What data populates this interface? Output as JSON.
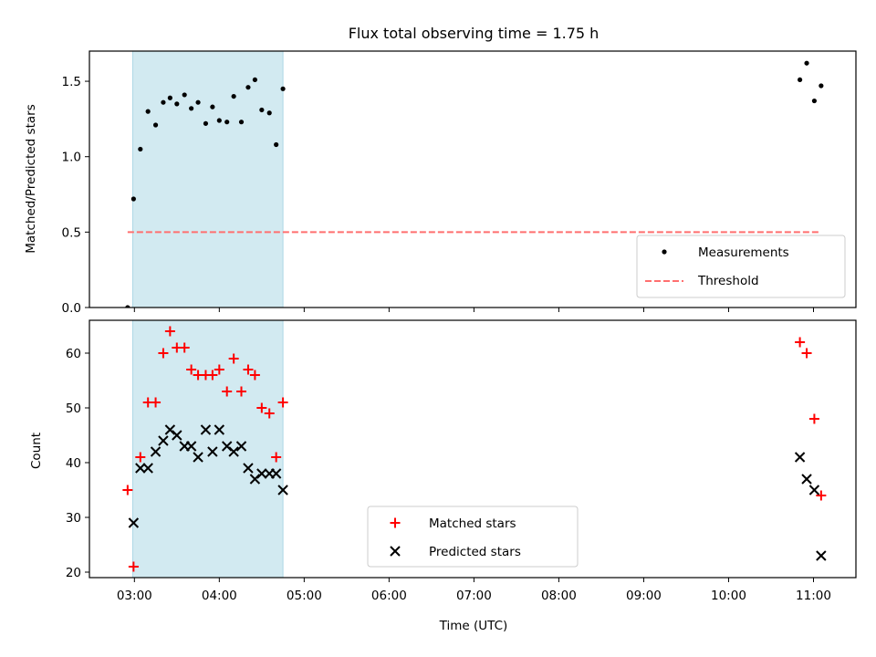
{
  "chart_data": [
    {
      "type": "scatter",
      "title": "Flux total observing time = 1.75 h",
      "ylabel": "Matched/Predicted stars",
      "xlabel": "",
      "x_unit": "hours UTC",
      "xlim": [
        2.47,
        11.5
      ],
      "ylim": [
        0.0,
        1.7
      ],
      "yticks": [
        0.0,
        0.5,
        1.0,
        1.5
      ],
      "ytick_labels": [
        "0.0",
        "0.5",
        "1.0",
        "1.5"
      ],
      "highlight_span": [
        2.98,
        4.75
      ],
      "highlight_color": "#add8e6",
      "legend": {
        "position": "lower right",
        "entries": [
          {
            "label": "Measurements",
            "marker": "dot",
            "color": "#000000"
          },
          {
            "label": "Threshold",
            "marker": "dashed-line",
            "color": "#ff6f6f"
          }
        ]
      },
      "series": [
        {
          "name": "Measurements",
          "color": "#000000",
          "points": [
            [
              2.92,
              0.0
            ],
            [
              2.99,
              0.72
            ],
            [
              3.07,
              1.05
            ],
            [
              3.16,
              1.3
            ],
            [
              3.25,
              1.21
            ],
            [
              3.34,
              1.36
            ],
            [
              3.42,
              1.39
            ],
            [
              3.5,
              1.35
            ],
            [
              3.59,
              1.41
            ],
            [
              3.67,
              1.32
            ],
            [
              3.75,
              1.36
            ],
            [
              3.84,
              1.22
            ],
            [
              3.92,
              1.33
            ],
            [
              4.0,
              1.24
            ],
            [
              4.09,
              1.23
            ],
            [
              4.17,
              1.4
            ],
            [
              4.26,
              1.23
            ],
            [
              4.34,
              1.46
            ],
            [
              4.42,
              1.51
            ],
            [
              4.5,
              1.31
            ],
            [
              4.59,
              1.29
            ],
            [
              4.67,
              1.08
            ],
            [
              4.75,
              1.45
            ],
            [
              10.84,
              1.51
            ],
            [
              10.92,
              1.62
            ],
            [
              11.01,
              1.37
            ],
            [
              11.09,
              1.47
            ]
          ]
        },
        {
          "name": "Threshold",
          "type": "line",
          "style": "dashed",
          "color": "#ff6f6f",
          "points": [
            [
              2.92,
              0.5
            ],
            [
              11.09,
              0.5
            ]
          ]
        }
      ]
    },
    {
      "type": "scatter",
      "title": "",
      "ylabel": "Count",
      "xlabel": "Time (UTC)",
      "x_unit": "hours UTC",
      "xlim": [
        2.47,
        11.5
      ],
      "ylim": [
        19,
        66
      ],
      "yticks": [
        20,
        30,
        40,
        50,
        60
      ],
      "ytick_labels": [
        "20",
        "30",
        "40",
        "50",
        "60"
      ],
      "xticks": [
        3,
        4,
        5,
        6,
        7,
        8,
        9,
        10,
        11
      ],
      "xtick_labels": [
        "03:00",
        "04:00",
        "05:00",
        "06:00",
        "07:00",
        "08:00",
        "09:00",
        "10:00",
        "11:00"
      ],
      "highlight_span": [
        2.98,
        4.75
      ],
      "highlight_color": "#add8e6",
      "legend": {
        "position": "lower center",
        "entries": [
          {
            "label": "Matched stars",
            "marker": "plus",
            "color": "#ff0000"
          },
          {
            "label": "Predicted stars",
            "marker": "x",
            "color": "#000000"
          }
        ]
      },
      "series": [
        {
          "name": "Matched stars",
          "marker": "plus",
          "color": "#ff0000",
          "points": [
            [
              2.92,
              35
            ],
            [
              2.99,
              21
            ],
            [
              3.07,
              41
            ],
            [
              3.16,
              51
            ],
            [
              3.25,
              51
            ],
            [
              3.34,
              60
            ],
            [
              3.42,
              64
            ],
            [
              3.5,
              61
            ],
            [
              3.59,
              61
            ],
            [
              3.67,
              57
            ],
            [
              3.75,
              56
            ],
            [
              3.84,
              56
            ],
            [
              3.92,
              56
            ],
            [
              4.0,
              57
            ],
            [
              4.09,
              53
            ],
            [
              4.17,
              59
            ],
            [
              4.26,
              53
            ],
            [
              4.34,
              57
            ],
            [
              4.42,
              56
            ],
            [
              4.5,
              50
            ],
            [
              4.59,
              49
            ],
            [
              4.67,
              41
            ],
            [
              4.75,
              51
            ],
            [
              10.84,
              62
            ],
            [
              10.92,
              60
            ],
            [
              11.01,
              48
            ],
            [
              11.09,
              34
            ]
          ]
        },
        {
          "name": "Predicted stars",
          "marker": "x",
          "color": "#000000",
          "points": [
            [
              2.99,
              29
            ],
            [
              3.07,
              39
            ],
            [
              3.16,
              39
            ],
            [
              3.25,
              42
            ],
            [
              3.34,
              44
            ],
            [
              3.42,
              46
            ],
            [
              3.5,
              45
            ],
            [
              3.59,
              43
            ],
            [
              3.67,
              43
            ],
            [
              3.75,
              41
            ],
            [
              3.84,
              46
            ],
            [
              3.92,
              42
            ],
            [
              4.0,
              46
            ],
            [
              4.09,
              43
            ],
            [
              4.17,
              42
            ],
            [
              4.26,
              43
            ],
            [
              4.34,
              39
            ],
            [
              4.42,
              37
            ],
            [
              4.5,
              38
            ],
            [
              4.59,
              38
            ],
            [
              4.67,
              38
            ],
            [
              4.75,
              35
            ],
            [
              10.84,
              41
            ],
            [
              10.92,
              37
            ],
            [
              11.01,
              35
            ],
            [
              11.09,
              23
            ]
          ]
        }
      ]
    }
  ]
}
